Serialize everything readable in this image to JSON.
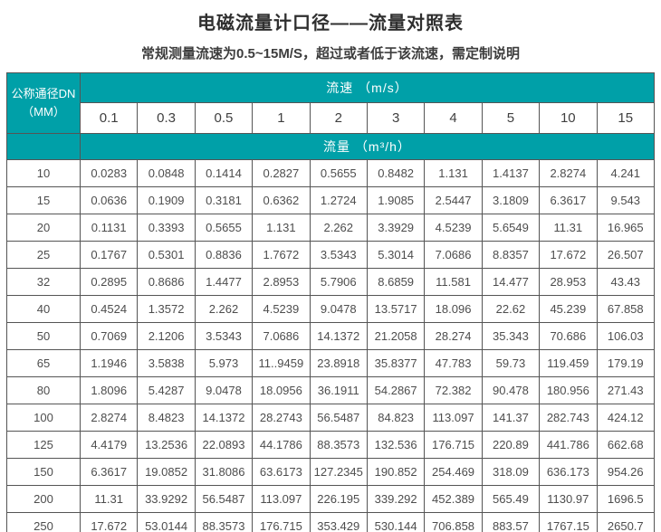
{
  "page": {
    "title": "电磁流量计口径——流量对照表",
    "subtitle": "常规测量流速为0.5~15M/S，超过或者低于该流速，需定制说明"
  },
  "colors": {
    "header_teal": "#00a0a8",
    "teal_divider_red": "#a04040",
    "grid_gray": "#555555",
    "value_text": "#4d4d4d"
  },
  "table": {
    "corner_header_line1": "公称通径DN",
    "corner_header_line2": "（MM）",
    "velocity_band_label": "流速 （m/s）",
    "flow_band_label": "流量 （m³/h）",
    "velocities": [
      "0.1",
      "0.3",
      "0.5",
      "1",
      "2",
      "3",
      "4",
      "5",
      "10",
      "15"
    ],
    "rows": [
      {
        "dn": "10",
        "values": [
          "0.0283",
          "0.0848",
          "0.1414",
          "0.2827",
          "0.5655",
          "0.8482",
          "1.131",
          "1.4137",
          "2.8274",
          "4.241"
        ]
      },
      {
        "dn": "15",
        "values": [
          "0.0636",
          "0.1909",
          "0.3181",
          "0.6362",
          "1.2724",
          "1.9085",
          "2.5447",
          "3.1809",
          "6.3617",
          "9.543"
        ]
      },
      {
        "dn": "20",
        "values": [
          "0.1131",
          "0.3393",
          "0.5655",
          "1.131",
          "2.262",
          "3.3929",
          "4.5239",
          "5.6549",
          "11.31",
          "16.965"
        ]
      },
      {
        "dn": "25",
        "values": [
          "0.1767",
          "0.5301",
          "0.8836",
          "1.7672",
          "3.5343",
          "5.3014",
          "7.0686",
          "8.8357",
          "17.672",
          "26.507"
        ]
      },
      {
        "dn": "32",
        "values": [
          "0.2895",
          "0.8686",
          "1.4477",
          "2.8953",
          "5.7906",
          "8.6859",
          "11.581",
          "14.477",
          "28.953",
          "43.43"
        ]
      },
      {
        "dn": "40",
        "values": [
          "0.4524",
          "1.3572",
          "2.262",
          "4.5239",
          "9.0478",
          "13.5717",
          "18.096",
          "22.62",
          "45.239",
          "67.858"
        ]
      },
      {
        "dn": "50",
        "values": [
          "0.7069",
          "2.1206",
          "3.5343",
          "7.0686",
          "14.1372",
          "21.2058",
          "28.274",
          "35.343",
          "70.686",
          "106.03"
        ]
      },
      {
        "dn": "65",
        "values": [
          "1.1946",
          "3.5838",
          "5.973",
          "11..9459",
          "23.8918",
          "35.8377",
          "47.783",
          "59.73",
          "119.459",
          "179.19"
        ]
      },
      {
        "dn": "80",
        "values": [
          "1.8096",
          "5.4287",
          "9.0478",
          "18.0956",
          "36.1911",
          "54.2867",
          "72.382",
          "90.478",
          "180.956",
          "271.43"
        ]
      },
      {
        "dn": "100",
        "values": [
          "2.8274",
          "8.4823",
          "14.1372",
          "28.2743",
          "56.5487",
          "84.823",
          "113.097",
          "141.37",
          "282.743",
          "424.12"
        ]
      },
      {
        "dn": "125",
        "values": [
          "4.4179",
          "13.2536",
          "22.0893",
          "44.1786",
          "88.3573",
          "132.536",
          "176.715",
          "220.89",
          "441.786",
          "662.68"
        ]
      },
      {
        "dn": "150",
        "values": [
          "6.3617",
          "19.0852",
          "31.8086",
          "63.6173",
          "127.2345",
          "190.852",
          "254.469",
          "318.09",
          "636.173",
          "954.26"
        ]
      },
      {
        "dn": "200",
        "values": [
          "11.31",
          "33.9292",
          "56.5487",
          "113.097",
          "226.195",
          "339.292",
          "452.389",
          "565.49",
          "1130.97",
          "1696.5"
        ]
      },
      {
        "dn": "250",
        "values": [
          "17.672",
          "53.0144",
          "88.3573",
          "176.715",
          "353.429",
          "530.144",
          "706.858",
          "883.57",
          "1767.15",
          "2650.7"
        ]
      }
    ]
  }
}
